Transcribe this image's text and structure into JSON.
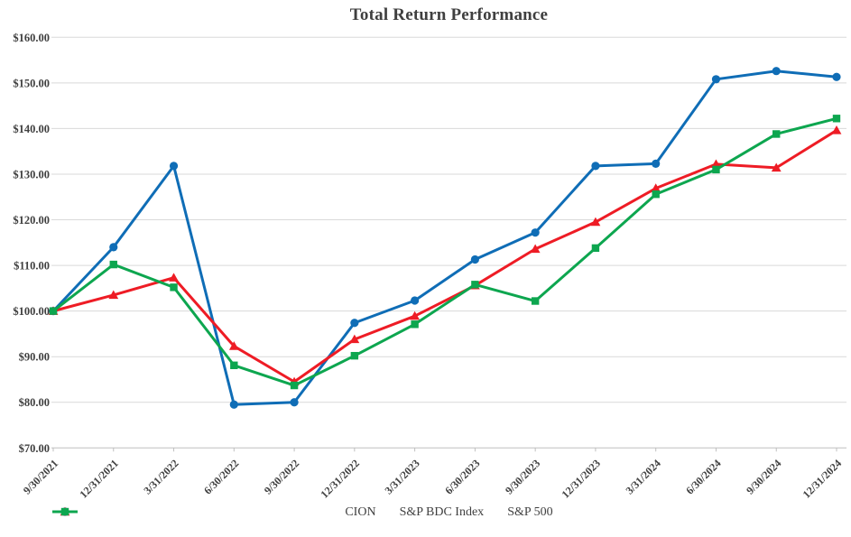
{
  "chart_data": {
    "type": "line",
    "title": "Total Return Performance",
    "xlabel": "",
    "ylabel": "",
    "ylim": [
      70,
      160
    ],
    "grid": true,
    "legend_position": "bottom",
    "y_ticks": [
      160,
      150,
      140,
      130,
      120,
      110,
      100,
      90,
      80,
      70
    ],
    "y_tick_labels": [
      "$160.00",
      "$150.00",
      "$140.00",
      "$130.00",
      "$120.00",
      "$110.00",
      "$100.00",
      "$90.00",
      "$80.00",
      "$70.00"
    ],
    "x_categories": [
      "9/30/2021",
      "12/31/2021",
      "3/31/2022",
      "6/30/2022",
      "9/30/2022",
      "12/31/2022",
      "3/31/2023",
      "6/30/2023",
      "9/30/2023",
      "12/31/2023",
      "3/31/2024",
      "6/30/2024",
      "9/30/2024",
      "12/31/2024"
    ],
    "series": [
      {
        "name": "CION",
        "color": "#0f6db6",
        "marker": "circle",
        "values": [
          100.0,
          114.0,
          131.8,
          79.5,
          80.0,
          97.4,
          102.3,
          111.3,
          117.2,
          131.8,
          132.3,
          150.8,
          152.6,
          151.3
        ]
      },
      {
        "name": "S&P BDC Index",
        "color": "#ee1c25",
        "marker": "triangle",
        "values": [
          100.0,
          103.5,
          107.3,
          92.3,
          84.5,
          93.8,
          98.9,
          105.6,
          113.6,
          119.5,
          126.9,
          132.2,
          131.4,
          139.6
        ]
      },
      {
        "name": "S&P 500",
        "color": "#0da64f",
        "marker": "square",
        "values": [
          100.0,
          110.2,
          105.2,
          88.1,
          83.7,
          90.2,
          97.1,
          105.8,
          102.2,
          113.8,
          125.6,
          131.0,
          138.8,
          142.2
        ]
      }
    ],
    "axis_color": "#bfbfbf",
    "gridline_color": "#d9d9d9"
  }
}
